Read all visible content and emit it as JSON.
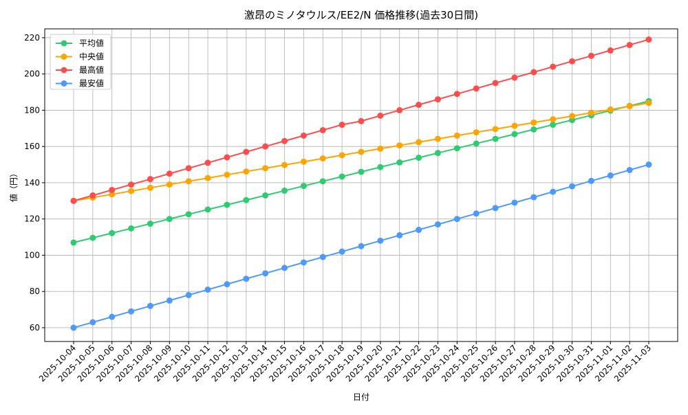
{
  "chart_data": {
    "type": "line",
    "title": "激昂のミノタウルス/EE2/N 価格推移(過去30日間)",
    "x_label": "日付",
    "y_label": "値（円）",
    "categories": [
      "2025-10-04",
      "2025-10-05",
      "2025-10-06",
      "2025-10-07",
      "2025-10-08",
      "2025-10-09",
      "2025-10-10",
      "2025-10-11",
      "2025-10-12",
      "2025-10-13",
      "2025-10-14",
      "2025-10-15",
      "2025-10-16",
      "2025-10-17",
      "2025-10-18",
      "2025-10-19",
      "2025-10-20",
      "2025-10-21",
      "2025-10-22",
      "2025-10-23",
      "2025-10-24",
      "2025-10-25",
      "2025-10-26",
      "2025-10-27",
      "2025-10-28",
      "2025-10-29",
      "2025-10-30",
      "2025-10-31",
      "2025-11-01",
      "2025-11-02",
      "2025-11-03"
    ],
    "series": [
      {
        "name": "平均値",
        "color": "#2ecc71",
        "values": [
          107,
          109.6,
          112.2,
          114.8,
          117.4,
          120,
          122.6,
          125.2,
          127.8,
          130.4,
          133,
          135.6,
          138.2,
          140.8,
          143.4,
          146,
          148.6,
          151.2,
          153.8,
          156.4,
          159,
          161.6,
          164.2,
          166.8,
          169.4,
          172,
          174.6,
          177.2,
          179.8,
          182.4,
          185
        ]
      },
      {
        "name": "中央値",
        "color": "#ffa500",
        "values": [
          130,
          131.8,
          133.6,
          135.4,
          137.2,
          139,
          140.8,
          142.6,
          144.4,
          146.2,
          148,
          149.8,
          151.6,
          153.4,
          155.2,
          157,
          158.8,
          160.6,
          162.4,
          164.2,
          166,
          167.8,
          169.6,
          171.4,
          173.2,
          175,
          176.8,
          178.6,
          180.4,
          182.2,
          184
        ]
      },
      {
        "name": "最高値",
        "color": "#ff4d4d",
        "values": [
          130,
          133,
          136,
          139,
          142,
          145,
          148,
          151,
          154,
          157,
          160,
          163,
          166,
          169,
          172,
          174,
          177,
          180,
          183,
          186,
          189,
          192,
          195,
          198,
          201,
          204,
          207,
          210,
          213,
          216,
          219
        ]
      },
      {
        "name": "最安値",
        "color": "#4d9aff",
        "values": [
          60,
          63,
          66,
          69,
          72,
          75,
          78,
          81,
          84,
          87,
          90,
          93,
          96,
          99,
          102,
          105,
          108,
          111,
          114,
          117,
          120,
          123,
          126,
          129,
          132,
          135,
          138,
          141,
          144,
          147,
          150
        ]
      }
    ],
    "ylim": [
      52.4,
      224.9
    ],
    "yticks": [
      60,
      80,
      100,
      120,
      140,
      160,
      180,
      200,
      220
    ],
    "grid": true,
    "legend": "upper-left"
  }
}
